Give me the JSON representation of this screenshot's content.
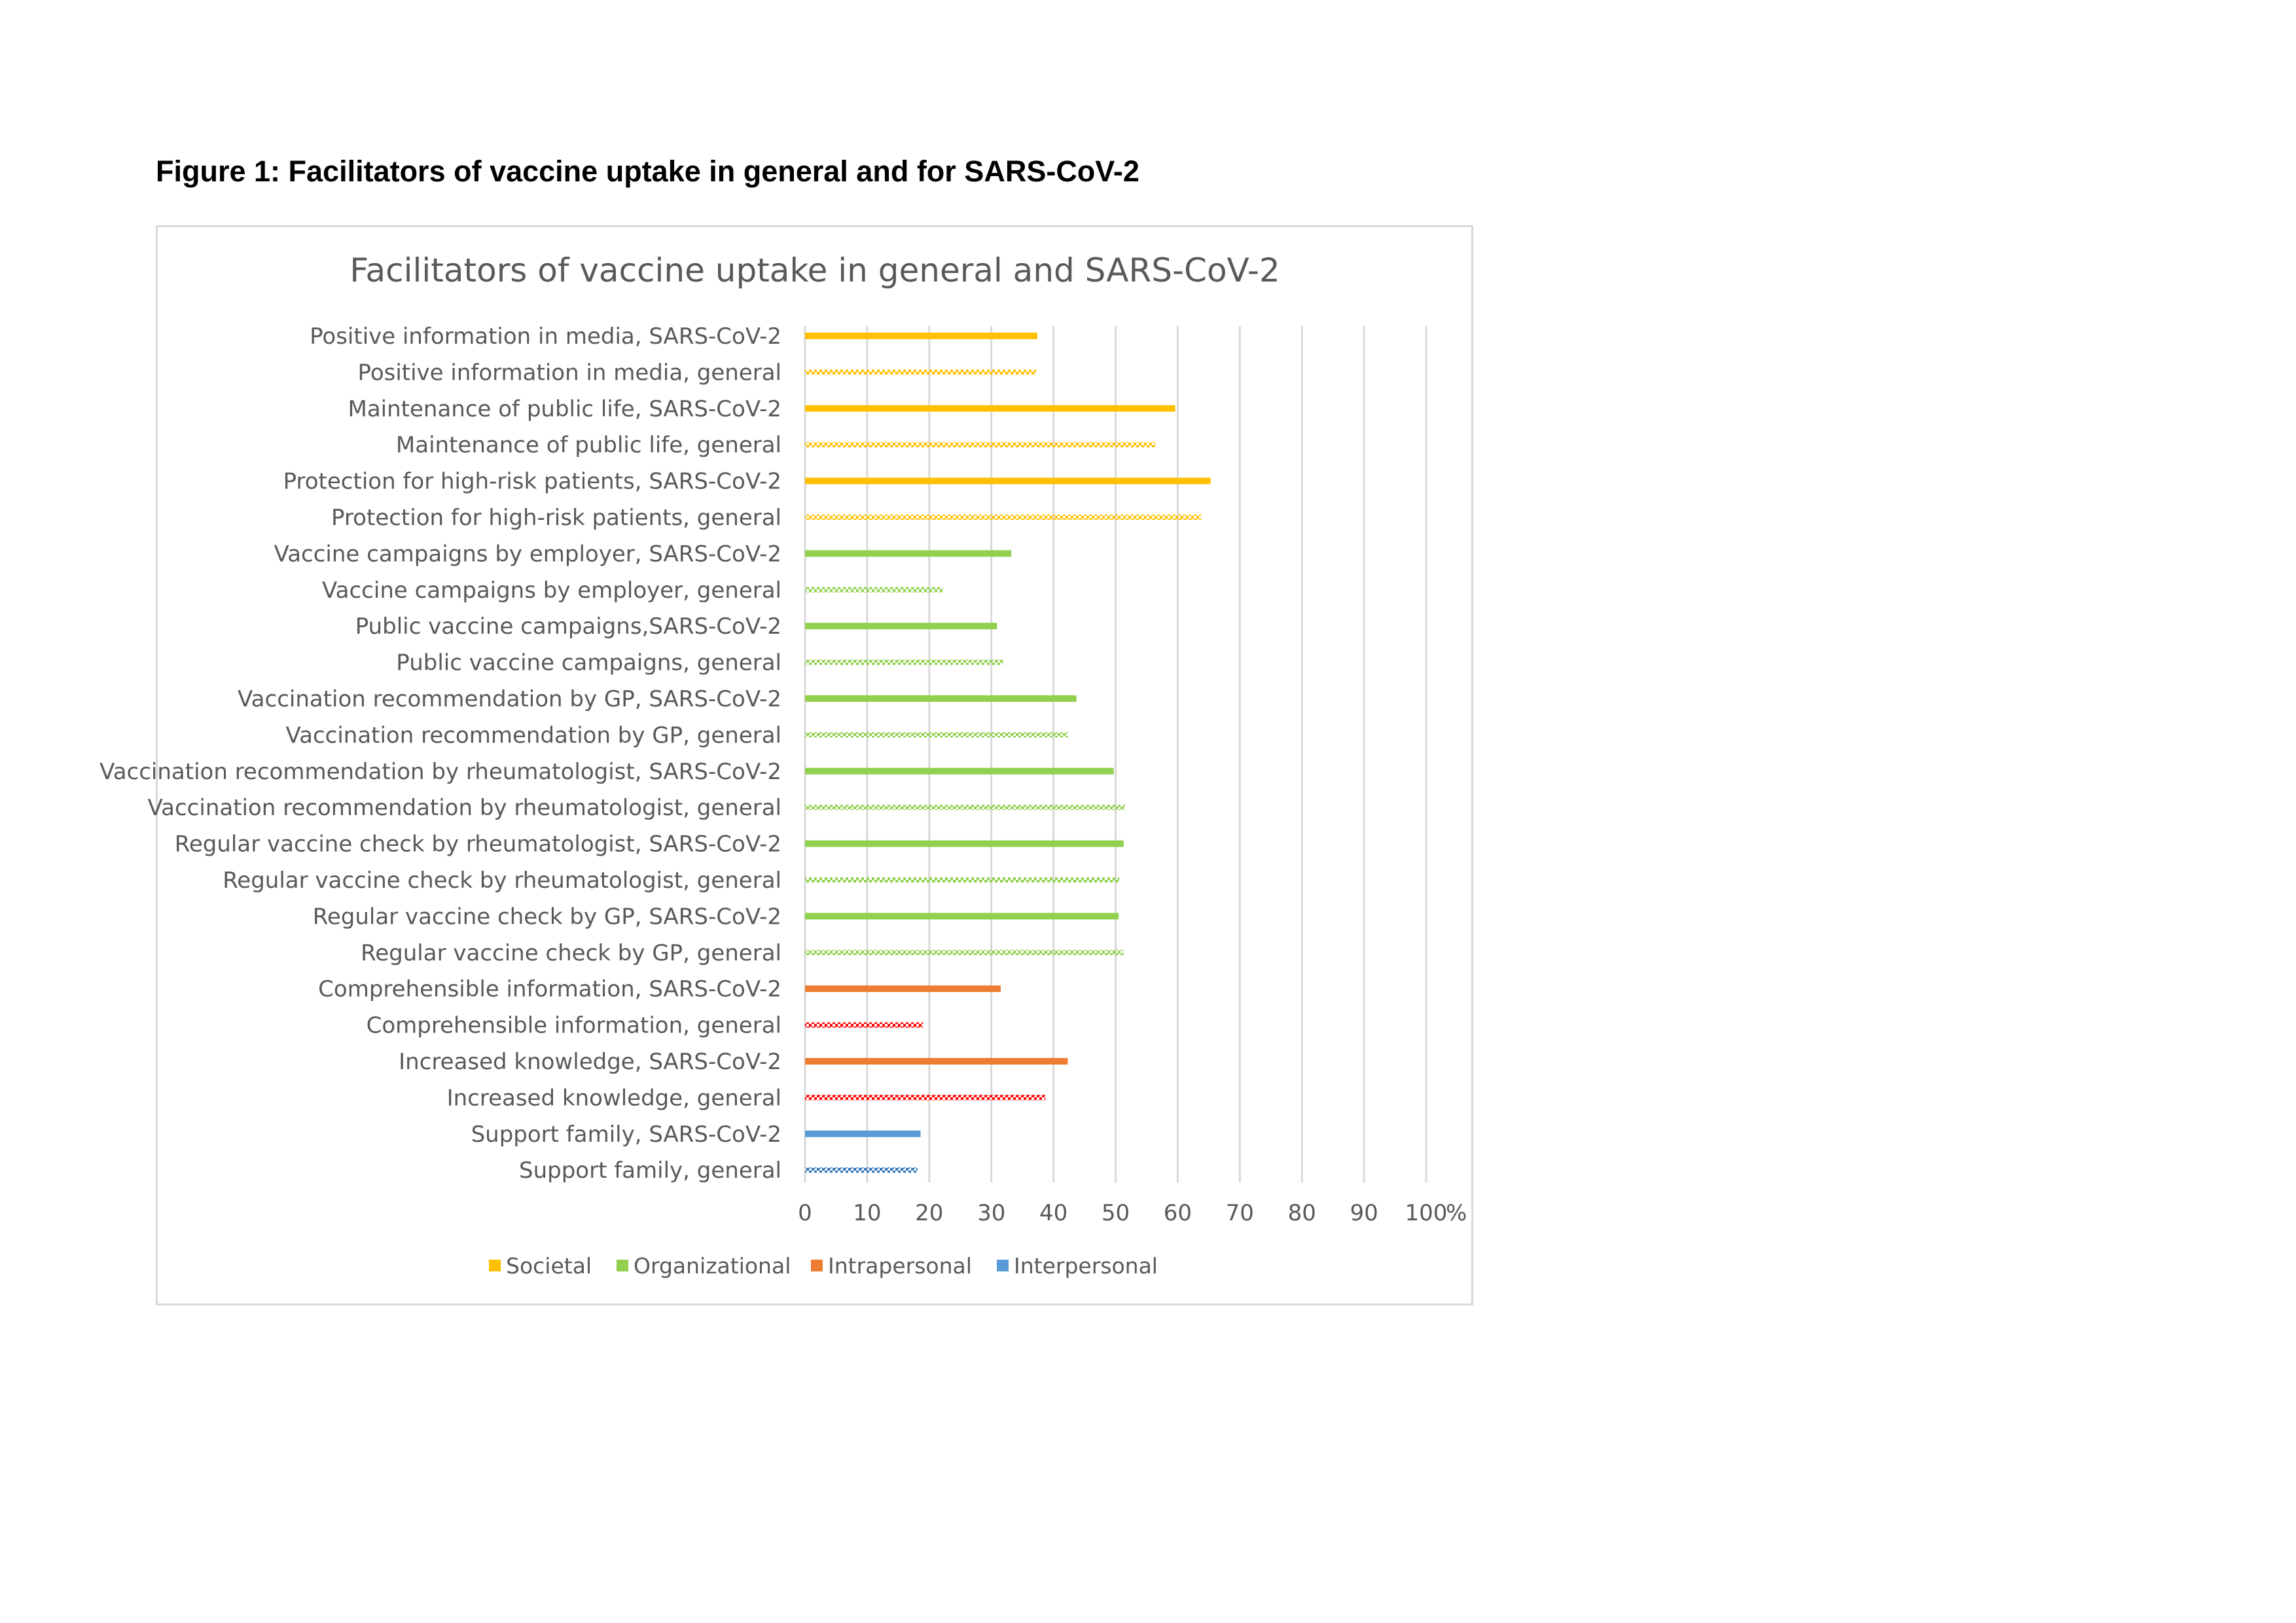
{
  "figure_caption": "Figure 1: Facilitators of vaccine uptake in general and for SARS-CoV-2",
  "chart_data": {
    "type": "bar",
    "orientation": "horizontal",
    "title": "Facilitators of vaccine uptake in general and SARS-CoV-2",
    "xlabel": "",
    "ylabel": "",
    "xlim": [
      0,
      100
    ],
    "x_ticks": [
      "0",
      "10",
      "20",
      "30",
      "40",
      "50",
      "60",
      "70",
      "80",
      "90",
      "100"
    ],
    "x_unit": "%",
    "grid": "vertical",
    "legend_position": "bottom",
    "legend": [
      {
        "name": "Societal",
        "color": "#FFC000"
      },
      {
        "name": "Organizational",
        "color": "#92D050"
      },
      {
        "name": "Intrapersonal",
        "color": "#ED7D31"
      },
      {
        "name": "Interpersonal",
        "color": "#5B9BD5"
      }
    ],
    "bars": [
      {
        "label": "Positive information in media, SARS-CoV-2",
        "value": 37.4,
        "group": "Societal",
        "style": "solid",
        "color": "#FFC000"
      },
      {
        "label": "Positive information in media, general",
        "value": 37.2,
        "group": "Societal",
        "style": "pattern",
        "color": "#FFC000"
      },
      {
        "label": "Maintenance of public life,  SARS-CoV-2",
        "value": 59.6,
        "group": "Societal",
        "style": "solid",
        "color": "#FFC000"
      },
      {
        "label": "Maintenance of public life, general",
        "value": 56.4,
        "group": "Societal",
        "style": "pattern",
        "color": "#FFC000"
      },
      {
        "label": "Protection for high-risk patients,  SARS-CoV-2",
        "value": 65.3,
        "group": "Societal",
        "style": "solid",
        "color": "#FFC000"
      },
      {
        "label": "Protection for high-risk patients, general",
        "value": 63.8,
        "group": "Societal",
        "style": "pattern",
        "color": "#FFC000"
      },
      {
        "label": "Vaccine campaigns by employer, SARS-CoV-2",
        "value": 33.2,
        "group": "Organizational",
        "style": "solid",
        "color": "#92D050"
      },
      {
        "label": "Vaccine campaigns by employer, general",
        "value": 22.2,
        "group": "Organizational",
        "style": "pattern",
        "color": "#92D050"
      },
      {
        "label": "Public vaccine campaigns,SARS-CoV-2",
        "value": 30.9,
        "group": "Organizational",
        "style": "solid",
        "color": "#92D050"
      },
      {
        "label": "Public vaccine campaigns, general",
        "value": 31.9,
        "group": "Organizational",
        "style": "pattern",
        "color": "#92D050"
      },
      {
        "label": "Vaccination recommendation by GP, SARS-CoV-2",
        "value": 43.7,
        "group": "Organizational",
        "style": "solid",
        "color": "#92D050"
      },
      {
        "label": "Vaccination recommendation by GP, general",
        "value": 42.3,
        "group": "Organizational",
        "style": "pattern",
        "color": "#92D050"
      },
      {
        "label": "Vaccination recommendation by rheumatologist, SARS-CoV-2",
        "value": 49.7,
        "group": "Organizational",
        "style": "solid",
        "color": "#92D050"
      },
      {
        "label": "Vaccination recommendation by rheumatologist, general",
        "value": 51.5,
        "group": "Organizational",
        "style": "pattern",
        "color": "#92D050"
      },
      {
        "label": "Regular vaccine check by rheumatologist, SARS-CoV-2",
        "value": 51.3,
        "group": "Organizational",
        "style": "solid",
        "color": "#92D050"
      },
      {
        "label": "Regular vaccine check by rheumatologist, general",
        "value": 50.6,
        "group": "Organizational",
        "style": "pattern",
        "color": "#92D050"
      },
      {
        "label": "Regular vaccine check by GP, SARS-CoV-2",
        "value": 50.5,
        "group": "Organizational",
        "style": "solid",
        "color": "#92D050"
      },
      {
        "label": "Regular vaccine check by GP, general",
        "value": 51.3,
        "group": "Organizational",
        "style": "pattern",
        "color": "#92D050"
      },
      {
        "label": "Comprehensible information, SARS-CoV-2",
        "value": 31.5,
        "group": "Intrapersonal",
        "style": "solid",
        "color": "#ED7D31"
      },
      {
        "label": "Comprehensible information, general",
        "value": 19.0,
        "group": "Intrapersonal",
        "style": "pattern",
        "color": "#FF0000"
      },
      {
        "label": "Increased knowledge, SARS-CoV-2",
        "value": 42.3,
        "group": "Intrapersonal",
        "style": "solid",
        "color": "#ED7D31"
      },
      {
        "label": "Increased knowledge, general",
        "value": 38.7,
        "group": "Intrapersonal",
        "style": "pattern",
        "color": "#FF0000"
      },
      {
        "label": "Support family,  SARS-CoV-2",
        "value": 18.6,
        "group": "Interpersonal",
        "style": "solid",
        "color": "#5B9BD5"
      },
      {
        "label": "Support family, general",
        "value": 18.1,
        "group": "Interpersonal",
        "style": "pattern",
        "color": "#2E75B6"
      }
    ]
  }
}
